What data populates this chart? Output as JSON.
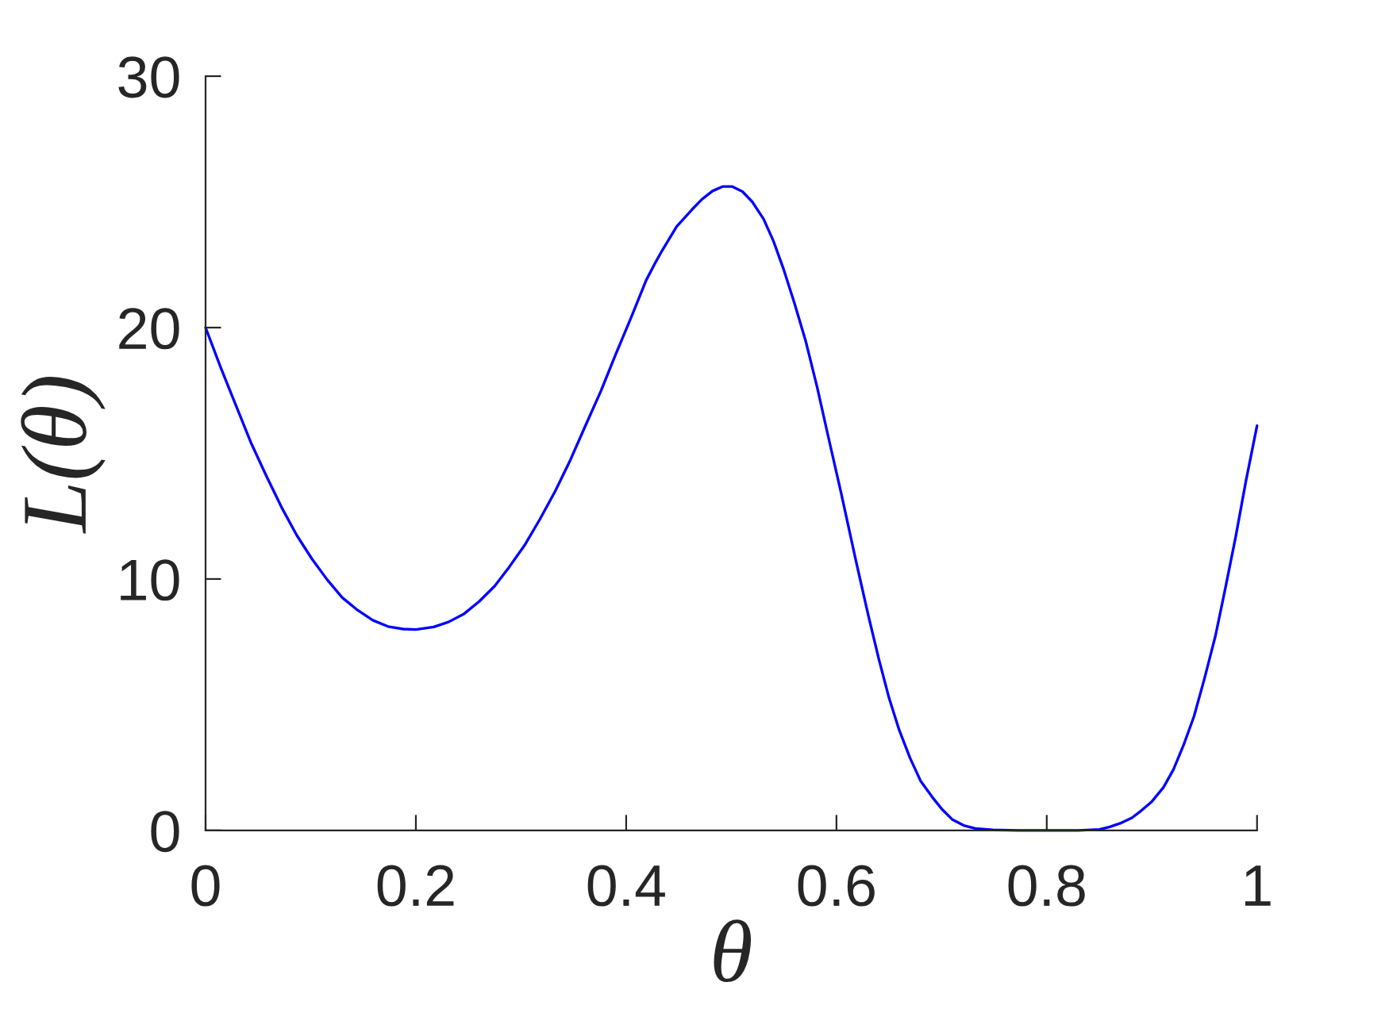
{
  "chart_data": {
    "type": "line",
    "xlabel": "θ",
    "ylabel": "L(θ)",
    "x": [
      0,
      0.0145,
      0.0289,
      0.0434,
      0.0578,
      0.0723,
      0.0867,
      0.101,
      0.1157,
      0.13,
      0.1446,
      0.159,
      0.1735,
      0.188,
      0.2,
      0.217,
      0.231,
      0.246,
      0.26,
      0.275,
      0.289,
      0.304,
      0.318,
      0.3325,
      0.347,
      0.361,
      0.376,
      0.39,
      0.405,
      0.419,
      0.428,
      0.434,
      0.448,
      0.4627,
      0.472,
      0.482,
      0.4916,
      0.501,
      0.5106,
      0.52,
      0.5307,
      0.54,
      0.55,
      0.56,
      0.5707,
      0.5817,
      0.592,
      0.6043,
      0.6188,
      0.6308,
      0.6404,
      0.65,
      0.6597,
      0.67,
      0.68,
      0.6914,
      0.7006,
      0.71,
      0.721,
      0.7319,
      0.7487,
      0.773,
      0.8,
      0.83,
      0.85,
      0.86,
      0.871,
      0.881,
      0.89,
      0.9,
      0.911,
      0.9205,
      0.93,
      0.94,
      0.95,
      0.9605,
      0.97,
      0.9797,
      0.9894,
      1.0
    ],
    "series": [
      {
        "color": "#0000ff",
        "values": [
          20,
          18.4,
          16.9,
          15.4,
          14.1,
          12.85,
          11.74,
          10.81,
          9.97,
          9.26,
          8.76,
          8.36,
          8.11,
          8.01,
          7.99,
          8.09,
          8.29,
          8.62,
          9.1,
          9.72,
          10.49,
          11.38,
          12.38,
          13.49,
          14.74,
          16.07,
          17.48,
          18.93,
          20.43,
          21.88,
          22.6,
          23.05,
          24.02,
          24.7,
          25.1,
          25.43,
          25.61,
          25.61,
          25.41,
          25.0,
          24.32,
          23.45,
          22.29,
          20.98,
          19.47,
          17.62,
          15.7,
          13.45,
          10.67,
          8.46,
          6.8,
          5.27,
          3.99,
          2.88,
          1.97,
          1.31,
          0.83,
          0.44,
          0.2,
          0.08,
          0.02,
          0,
          0,
          0,
          0.04,
          0.14,
          0.3,
          0.5,
          0.79,
          1.15,
          1.71,
          2.42,
          3.38,
          4.53,
          6.04,
          7.75,
          9.66,
          11.68,
          13.89,
          16.1
        ]
      }
    ],
    "xlim": [
      0,
      1
    ],
    "ylim": [
      0,
      30
    ],
    "xticks": [
      0,
      0.2,
      0.4,
      0.6,
      0.8,
      1
    ],
    "yticks": [
      0,
      10,
      20,
      30
    ],
    "marker": "none",
    "line_style": "solid"
  }
}
